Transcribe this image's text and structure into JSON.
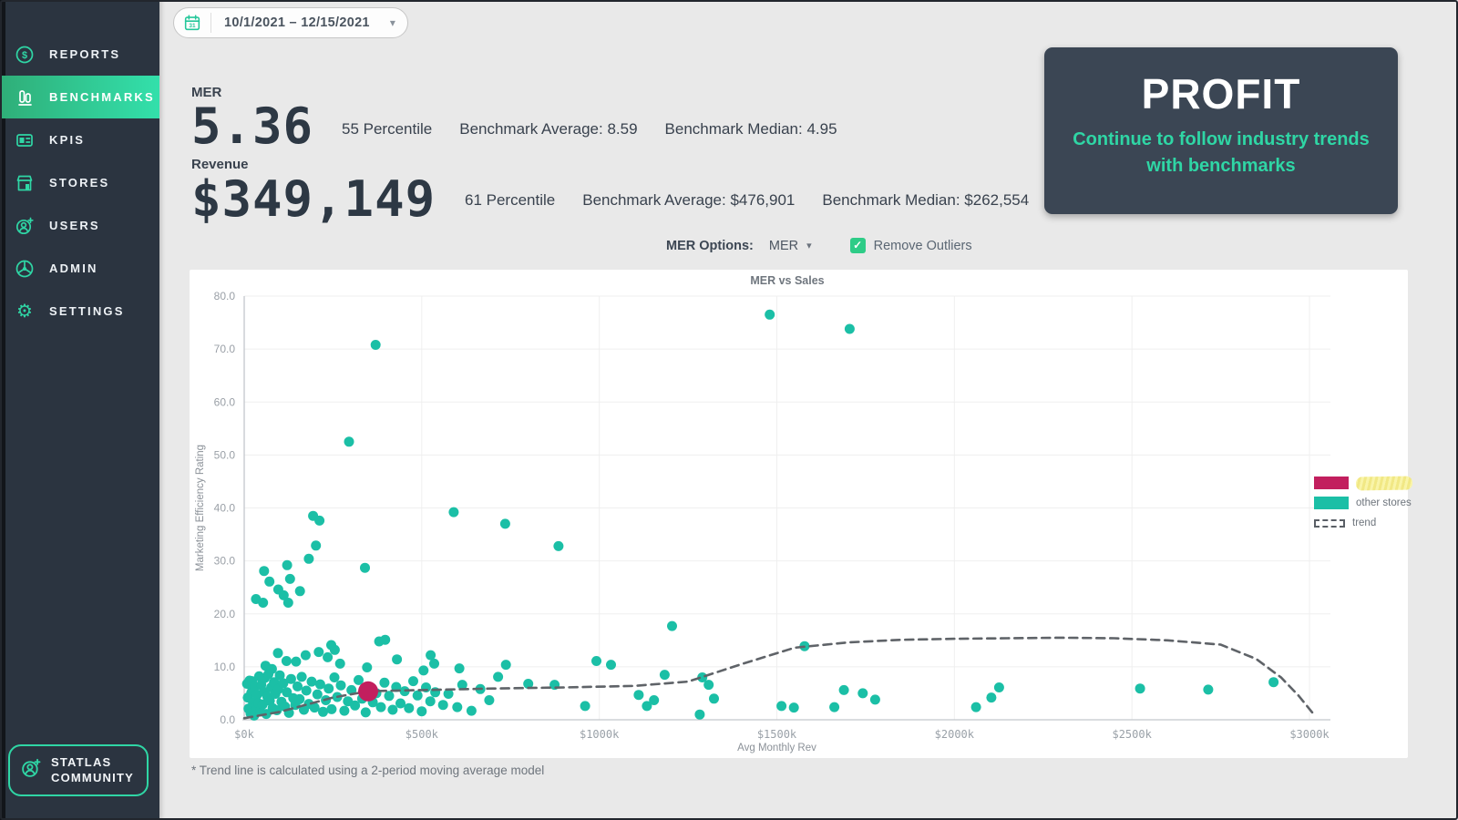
{
  "sidebar": {
    "items": [
      {
        "id": "reports",
        "label": "REPORTS",
        "icon": "dollar-circle-icon",
        "active": false
      },
      {
        "id": "benchmarks",
        "label": "BENCHMARKS",
        "icon": "bar-chart-icon",
        "active": true
      },
      {
        "id": "kpis",
        "label": "KPIS",
        "icon": "card-icon",
        "active": false
      },
      {
        "id": "stores",
        "label": "STORES",
        "icon": "storefront-icon",
        "active": false
      },
      {
        "id": "users",
        "label": "USERS",
        "icon": "user-plus-icon",
        "active": false
      },
      {
        "id": "admin",
        "label": "ADMIN",
        "icon": "wheel-icon",
        "active": false
      },
      {
        "id": "settings",
        "label": "SETTINGS",
        "icon": "gear-icon",
        "active": false
      }
    ],
    "community_badge": {
      "line1": "STATLAS",
      "line2": "COMMUNITY"
    }
  },
  "header": {
    "date_range": "10/1/2021 – 12/15/2021"
  },
  "metrics": {
    "mer": {
      "label": "MER",
      "value": "5.36",
      "percentile": "55 Percentile",
      "benchmark_average": "Benchmark Average: 8.59",
      "benchmark_median": "Benchmark Median: 4.95"
    },
    "revenue": {
      "label": "Revenue",
      "value": "$349,149",
      "percentile": "61 Percentile",
      "benchmark_average": "Benchmark Average: $476,901",
      "benchmark_median": "Benchmark Median: $262,554"
    }
  },
  "profit_card": {
    "title": "PROFIT",
    "subtitle": "Continue to follow industry trends with benchmarks",
    "background": "#3b4654",
    "accent": "#2fd6a5"
  },
  "controls": {
    "mer_options_label": "MER Options:",
    "mer_options_value": "MER",
    "remove_outliers_label": "Remove Outliers",
    "remove_outliers_checked": true
  },
  "footnote": "* Trend line is calculated using a 2-period moving average model",
  "colors": {
    "teal_point": "#1bbfa6",
    "pink_point": "#c21f5e",
    "trend": "#5f6368",
    "sidebar_bg": "#2b3440",
    "accent": "#2fd6a5"
  },
  "chart_data": {
    "type": "scatter",
    "title": "MER vs Sales",
    "xlabel": "Avg Monthly Rev",
    "ylabel": "Marketing Efficiency Rating",
    "x_units": "USD thousands",
    "xlim": [
      0,
      3000
    ],
    "ylim": [
      0,
      80
    ],
    "grid": true,
    "legend_position": "right",
    "x_tick_values": [
      0,
      500,
      1000,
      1500,
      2000,
      2500,
      3000
    ],
    "x_tick_labels": [
      "$0k",
      "$500k",
      "$1000k",
      "$1500k",
      "$2000k",
      "$2500k",
      "$3000k"
    ],
    "y_tick_values": [
      0,
      10,
      20,
      30,
      40,
      50,
      60,
      70,
      80
    ],
    "y_tick_labels": [
      "0.0",
      "10.0",
      "20.0",
      "30.0",
      "40.0",
      "50.0",
      "60.0",
      "70.0",
      "80.0"
    ],
    "legend": [
      {
        "label": "",
        "redacted": true,
        "swatch": "#c21f5e"
      },
      {
        "label": "other stores",
        "swatch": "#1bbfa6"
      },
      {
        "label": "trend",
        "swatch": "dashed"
      }
    ],
    "series": [
      {
        "name": "other stores",
        "kind": "scatter",
        "color": "#1bbfa6",
        "marker_radius": 5.5,
        "points": [
          [
            370,
            70.8
          ],
          [
            1480,
            76.5
          ],
          [
            1705,
            73.8
          ],
          [
            295,
            52.5
          ],
          [
            33,
            22.8
          ],
          [
            53,
            22.1
          ],
          [
            56,
            28.1
          ],
          [
            71,
            26.1
          ],
          [
            96,
            24.6
          ],
          [
            111,
            23.5
          ],
          [
            121,
            29.2
          ],
          [
            124,
            22.1
          ],
          [
            129,
            26.6
          ],
          [
            157,
            24.3
          ],
          [
            182,
            30.4
          ],
          [
            194,
            38.5
          ],
          [
            202,
            32.9
          ],
          [
            212,
            37.6
          ],
          [
            340,
            28.7
          ],
          [
            590,
            39.2
          ],
          [
            735,
            37.0
          ],
          [
            885,
            32.8
          ],
          [
            1205,
            17.7
          ],
          [
            1578,
            13.9
          ],
          [
            60,
            10.2
          ],
          [
            78,
            9.6
          ],
          [
            95,
            12.6
          ],
          [
            119,
            11.1
          ],
          [
            146,
            11.0
          ],
          [
            173,
            12.2
          ],
          [
            210,
            12.8
          ],
          [
            235,
            11.8
          ],
          [
            245,
            14.1
          ],
          [
            255,
            13.2
          ],
          [
            270,
            10.6
          ],
          [
            346,
            9.9
          ],
          [
            380,
            14.8
          ],
          [
            397,
            15.1
          ],
          [
            430,
            11.4
          ],
          [
            505,
            9.3
          ],
          [
            525,
            12.2
          ],
          [
            535,
            10.6
          ],
          [
            606,
            9.7
          ],
          [
            737,
            10.4
          ],
          [
            992,
            11.1
          ],
          [
            1033,
            10.4
          ],
          [
            8,
            6.8
          ],
          [
            10,
            4.2
          ],
          [
            12,
            2.1
          ],
          [
            15,
            7.4
          ],
          [
            18,
            1.2
          ],
          [
            20,
            5.1
          ],
          [
            22,
            7.3
          ],
          [
            23,
            5.7
          ],
          [
            25,
            3.2
          ],
          [
            28,
            0.8
          ],
          [
            30,
            6.2
          ],
          [
            33,
            2.6
          ],
          [
            36,
            4.7
          ],
          [
            40,
            3.1
          ],
          [
            42,
            8.2
          ],
          [
            45,
            1.6
          ],
          [
            48,
            6.6
          ],
          [
            52,
            2.9
          ],
          [
            55,
            5.3
          ],
          [
            58,
            7.9
          ],
          [
            62,
            1.1
          ],
          [
            65,
            4.4
          ],
          [
            68,
            8.6
          ],
          [
            72,
            3.6
          ],
          [
            76,
            6.1
          ],
          [
            80,
            2.2
          ],
          [
            84,
            7.1
          ],
          [
            88,
            4.9
          ],
          [
            92,
            1.8
          ],
          [
            96,
            5.8
          ],
          [
            100,
            8.4
          ],
          [
            105,
            3.4
          ],
          [
            110,
            6.9
          ],
          [
            115,
            2.5
          ],
          [
            120,
            5.2
          ],
          [
            126,
            1.3
          ],
          [
            132,
            7.7
          ],
          [
            138,
            4.1
          ],
          [
            144,
            2.8
          ],
          [
            150,
            6.3
          ],
          [
            156,
            3.9
          ],
          [
            162,
            8.1
          ],
          [
            168,
            1.9
          ],
          [
            175,
            5.5
          ],
          [
            182,
            3.0
          ],
          [
            190,
            7.2
          ],
          [
            198,
            2.3
          ],
          [
            206,
            4.8
          ],
          [
            214,
            6.7
          ],
          [
            222,
            1.5
          ],
          [
            230,
            3.7
          ],
          [
            238,
            5.9
          ],
          [
            246,
            2.0
          ],
          [
            254,
            8.0
          ],
          [
            262,
            4.3
          ],
          [
            272,
            6.5
          ],
          [
            282,
            1.7
          ],
          [
            292,
            3.5
          ],
          [
            302,
            5.6
          ],
          [
            312,
            2.7
          ],
          [
            322,
            7.5
          ],
          [
            332,
            4.0
          ],
          [
            342,
            1.4
          ],
          [
            352,
            6.0
          ],
          [
            362,
            3.3
          ],
          [
            372,
            5.0
          ],
          [
            385,
            2.4
          ],
          [
            395,
            7.0
          ],
          [
            408,
            4.5
          ],
          [
            418,
            1.9
          ],
          [
            428,
            6.2
          ],
          [
            440,
            3.1
          ],
          [
            452,
            5.4
          ],
          [
            464,
            2.2
          ],
          [
            476,
            7.3
          ],
          [
            488,
            4.6
          ],
          [
            500,
            1.6
          ],
          [
            512,
            6.1
          ],
          [
            524,
            3.5
          ],
          [
            538,
            5.2
          ],
          [
            560,
            2.8
          ],
          [
            575,
            4.9
          ],
          [
            600,
            2.4
          ],
          [
            614,
            6.6
          ],
          [
            640,
            1.7
          ],
          [
            665,
            5.8
          ],
          [
            690,
            3.7
          ],
          [
            715,
            8.1
          ],
          [
            800,
            6.8
          ],
          [
            874,
            6.6
          ],
          [
            960,
            2.6
          ],
          [
            1111,
            4.7
          ],
          [
            1134,
            2.6
          ],
          [
            1154,
            3.7
          ],
          [
            1184,
            8.5
          ],
          [
            1283,
            1.0
          ],
          [
            1290,
            8.0
          ],
          [
            1308,
            6.6
          ],
          [
            1323,
            4.0
          ],
          [
            1513,
            2.6
          ],
          [
            1548,
            2.3
          ],
          [
            1662,
            2.4
          ],
          [
            1689,
            5.6
          ],
          [
            1742,
            5.0
          ],
          [
            1777,
            3.8
          ],
          [
            2061,
            2.4
          ],
          [
            2104,
            4.2
          ],
          [
            2126,
            6.1
          ],
          [
            2523,
            5.9
          ],
          [
            2715,
            5.7
          ],
          [
            2899,
            7.1
          ]
        ]
      },
      {
        "name": "trend",
        "kind": "line",
        "dashed": true,
        "color": "#5f6368",
        "points": [
          [
            0,
            0.3
          ],
          [
            100,
            1.5
          ],
          [
            250,
            4.2
          ],
          [
            350,
            5.4
          ],
          [
            500,
            5.6
          ],
          [
            700,
            5.9
          ],
          [
            900,
            6.1
          ],
          [
            1100,
            6.4
          ],
          [
            1250,
            7.2
          ],
          [
            1400,
            10.5
          ],
          [
            1550,
            13.6
          ],
          [
            1700,
            14.6
          ],
          [
            1850,
            15.1
          ],
          [
            2000,
            15.3
          ],
          [
            2150,
            15.4
          ],
          [
            2300,
            15.5
          ],
          [
            2450,
            15.4
          ],
          [
            2600,
            15.0
          ],
          [
            2750,
            14.2
          ],
          [
            2850,
            11.5
          ],
          [
            2920,
            8.0
          ],
          [
            2970,
            4.5
          ],
          [
            3010,
            1.2
          ]
        ]
      },
      {
        "name": "store",
        "kind": "scatter",
        "label_redacted": true,
        "color": "#c21f5e",
        "marker_radius": 11,
        "points": [
          [
            349,
            5.36
          ]
        ]
      }
    ]
  }
}
